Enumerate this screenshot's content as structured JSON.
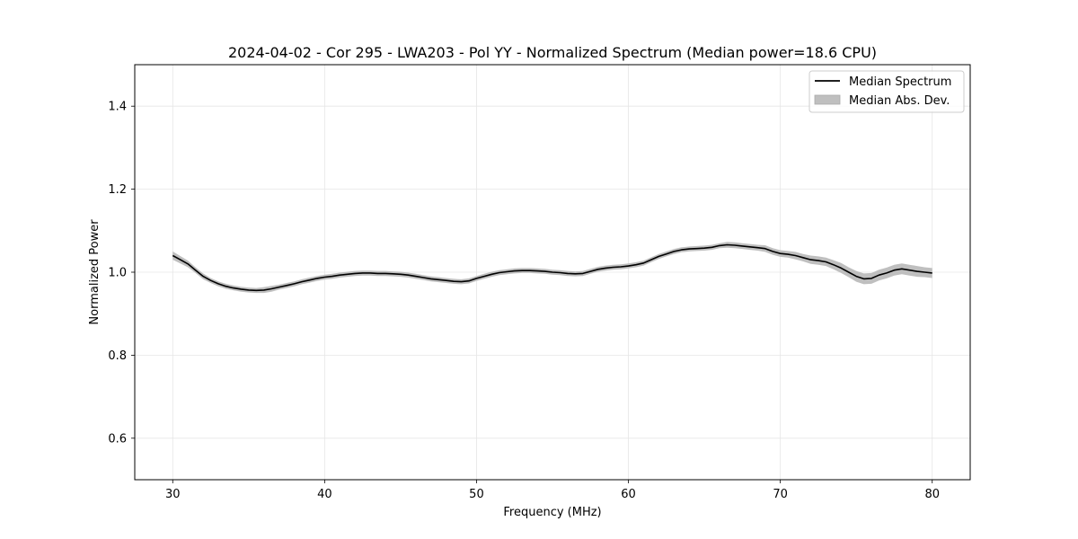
{
  "chart_data": {
    "type": "line",
    "title": "2024-04-02 - Cor 295 - LWA203 - Pol YY - Normalized Spectrum (Median power=18.6 CPU)",
    "xlabel": "Frequency (MHz)",
    "ylabel": "Normalized Power",
    "xlim": [
      27.5,
      82.5
    ],
    "ylim": [
      0.5,
      1.5
    ],
    "xticks": [
      30,
      40,
      50,
      60,
      70,
      80
    ],
    "xtick_labels": [
      "30",
      "40",
      "50",
      "60",
      "70",
      "80"
    ],
    "yticks": [
      0.6,
      0.8,
      1.0,
      1.2,
      1.4
    ],
    "ytick_labels": [
      "0.6",
      "0.8",
      "1.0",
      "1.2",
      "1.4"
    ],
    "grid": true,
    "legend_position": "top-right",
    "series": [
      {
        "name": "Median Spectrum",
        "color": "#000000",
        "x": [
          30,
          30.5,
          31,
          31.5,
          32,
          32.5,
          33,
          33.5,
          34,
          34.5,
          35,
          35.5,
          36,
          36.5,
          37,
          37.5,
          38,
          38.5,
          39,
          39.5,
          40,
          40.5,
          41,
          41.5,
          42,
          42.5,
          43,
          43.5,
          44,
          44.5,
          45,
          45.5,
          46,
          46.5,
          47,
          47.5,
          48,
          48.5,
          49,
          49.5,
          50,
          50.5,
          51,
          51.5,
          52,
          52.5,
          53,
          53.5,
          54,
          54.5,
          55,
          55.5,
          56,
          56.5,
          57,
          57.5,
          58,
          58.5,
          59,
          59.5,
          60,
          60.5,
          61,
          61.5,
          62,
          62.5,
          63,
          63.5,
          64,
          64.5,
          65,
          65.5,
          66,
          66.5,
          67,
          67.5,
          68,
          68.5,
          69,
          69.5,
          70,
          70.5,
          71,
          71.5,
          72,
          72.5,
          73,
          73.5,
          74,
          74.5,
          75,
          75.5,
          76,
          76.5,
          77,
          77.5,
          78,
          78.5,
          79,
          79.5,
          80
        ],
        "y": [
          1.04,
          1.03,
          1.02,
          1.005,
          0.99,
          0.98,
          0.972,
          0.966,
          0.962,
          0.959,
          0.957,
          0.956,
          0.957,
          0.96,
          0.964,
          0.968,
          0.972,
          0.977,
          0.981,
          0.985,
          0.988,
          0.99,
          0.993,
          0.995,
          0.997,
          0.998,
          0.998,
          0.997,
          0.997,
          0.996,
          0.995,
          0.993,
          0.99,
          0.987,
          0.984,
          0.982,
          0.98,
          0.978,
          0.977,
          0.979,
          0.985,
          0.99,
          0.995,
          0.999,
          1.001,
          1.003,
          1.004,
          1.004,
          1.003,
          1.002,
          1.0,
          0.999,
          0.997,
          0.996,
          0.997,
          1.002,
          1.007,
          1.01,
          1.012,
          1.013,
          1.015,
          1.018,
          1.022,
          1.03,
          1.038,
          1.044,
          1.05,
          1.054,
          1.056,
          1.057,
          1.058,
          1.06,
          1.064,
          1.066,
          1.065,
          1.063,
          1.061,
          1.059,
          1.057,
          1.05,
          1.045,
          1.043,
          1.04,
          1.035,
          1.03,
          1.028,
          1.025,
          1.018,
          1.01,
          1.0,
          0.99,
          0.984,
          0.985,
          0.993,
          0.998,
          1.005,
          1.008,
          1.005,
          1.002,
          1.0,
          0.998
        ],
        "mad": [
          0.01,
          0.009,
          0.008,
          0.007,
          0.007,
          0.006,
          0.006,
          0.006,
          0.006,
          0.006,
          0.006,
          0.006,
          0.007,
          0.007,
          0.006,
          0.006,
          0.006,
          0.006,
          0.006,
          0.006,
          0.006,
          0.006,
          0.006,
          0.006,
          0.006,
          0.006,
          0.006,
          0.006,
          0.006,
          0.006,
          0.006,
          0.006,
          0.006,
          0.006,
          0.006,
          0.006,
          0.006,
          0.006,
          0.006,
          0.006,
          0.006,
          0.006,
          0.006,
          0.006,
          0.006,
          0.006,
          0.006,
          0.006,
          0.006,
          0.006,
          0.006,
          0.006,
          0.006,
          0.006,
          0.006,
          0.006,
          0.006,
          0.006,
          0.006,
          0.006,
          0.006,
          0.006,
          0.006,
          0.006,
          0.006,
          0.006,
          0.006,
          0.006,
          0.006,
          0.006,
          0.006,
          0.006,
          0.006,
          0.007,
          0.007,
          0.007,
          0.007,
          0.007,
          0.008,
          0.008,
          0.008,
          0.008,
          0.009,
          0.009,
          0.01,
          0.01,
          0.01,
          0.011,
          0.012,
          0.012,
          0.013,
          0.013,
          0.013,
          0.013,
          0.013,
          0.013,
          0.013,
          0.013,
          0.013,
          0.012,
          0.012
        ]
      }
    ],
    "legend": [
      {
        "label": "Median Spectrum",
        "kind": "line",
        "color": "#000000"
      },
      {
        "label": "Median Abs. Dev.",
        "kind": "patch",
        "color": "#bfbfbf"
      }
    ]
  }
}
